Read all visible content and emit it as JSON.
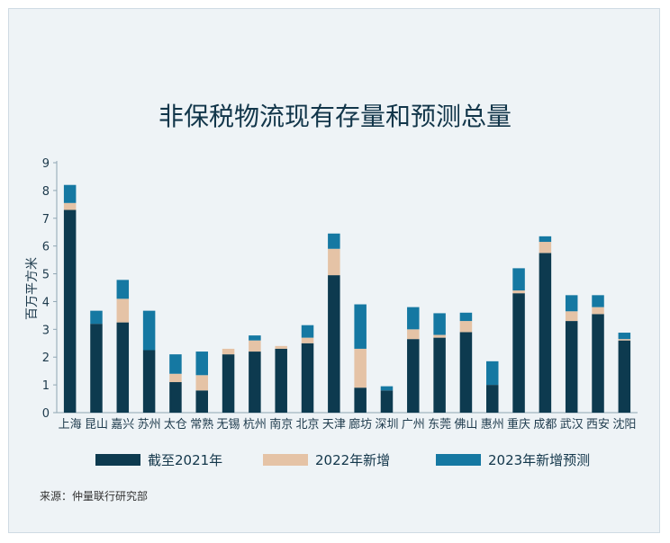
{
  "chart_data": {
    "type": "bar",
    "stacked": true,
    "title": "非保税物流现有存量和预测总量",
    "xlabel": "",
    "ylabel": "百万平方米",
    "ylim": [
      0,
      9
    ],
    "yticks": [
      "0",
      "1",
      "2",
      "3",
      "4",
      "5",
      "6",
      "7",
      "8",
      "9"
    ],
    "grid": false,
    "legend_position": "bottom",
    "categories": [
      "上海",
      "昆山",
      "嘉兴",
      "苏州",
      "太仓",
      "常熟",
      "无锡",
      "杭州",
      "南京",
      "北京",
      "天津",
      "廊坊",
      "深圳",
      "广州",
      "东莞",
      "佛山",
      "惠州",
      "重庆",
      "成都",
      "武汉",
      "西安",
      "沈阳"
    ],
    "series": [
      {
        "name": "截至2021年",
        "color": "#0d3a4f",
        "values": [
          7.3,
          3.2,
          3.25,
          2.25,
          1.1,
          0.8,
          2.1,
          2.2,
          2.3,
          2.5,
          4.95,
          0.9,
          0.8,
          2.65,
          2.7,
          2.9,
          1.0,
          4.3,
          5.75,
          3.3,
          3.55,
          2.6
        ]
      },
      {
        "name": "2022年新增",
        "color": "#e5c3a6",
        "values": [
          0.25,
          0.0,
          0.85,
          0.0,
          0.3,
          0.55,
          0.2,
          0.4,
          0.1,
          0.2,
          0.95,
          1.4,
          0.0,
          0.35,
          0.1,
          0.4,
          0.0,
          0.1,
          0.4,
          0.35,
          0.25,
          0.05
        ]
      },
      {
        "name": "2023年新增预测",
        "color": "#1578a2",
        "values": [
          0.65,
          0.47,
          0.68,
          1.42,
          0.7,
          0.85,
          0.0,
          0.18,
          0.0,
          0.45,
          0.55,
          1.6,
          0.15,
          0.8,
          0.78,
          0.3,
          0.85,
          0.8,
          0.2,
          0.58,
          0.43,
          0.23
        ]
      }
    ]
  },
  "source": "来源：仲量联行研究部"
}
